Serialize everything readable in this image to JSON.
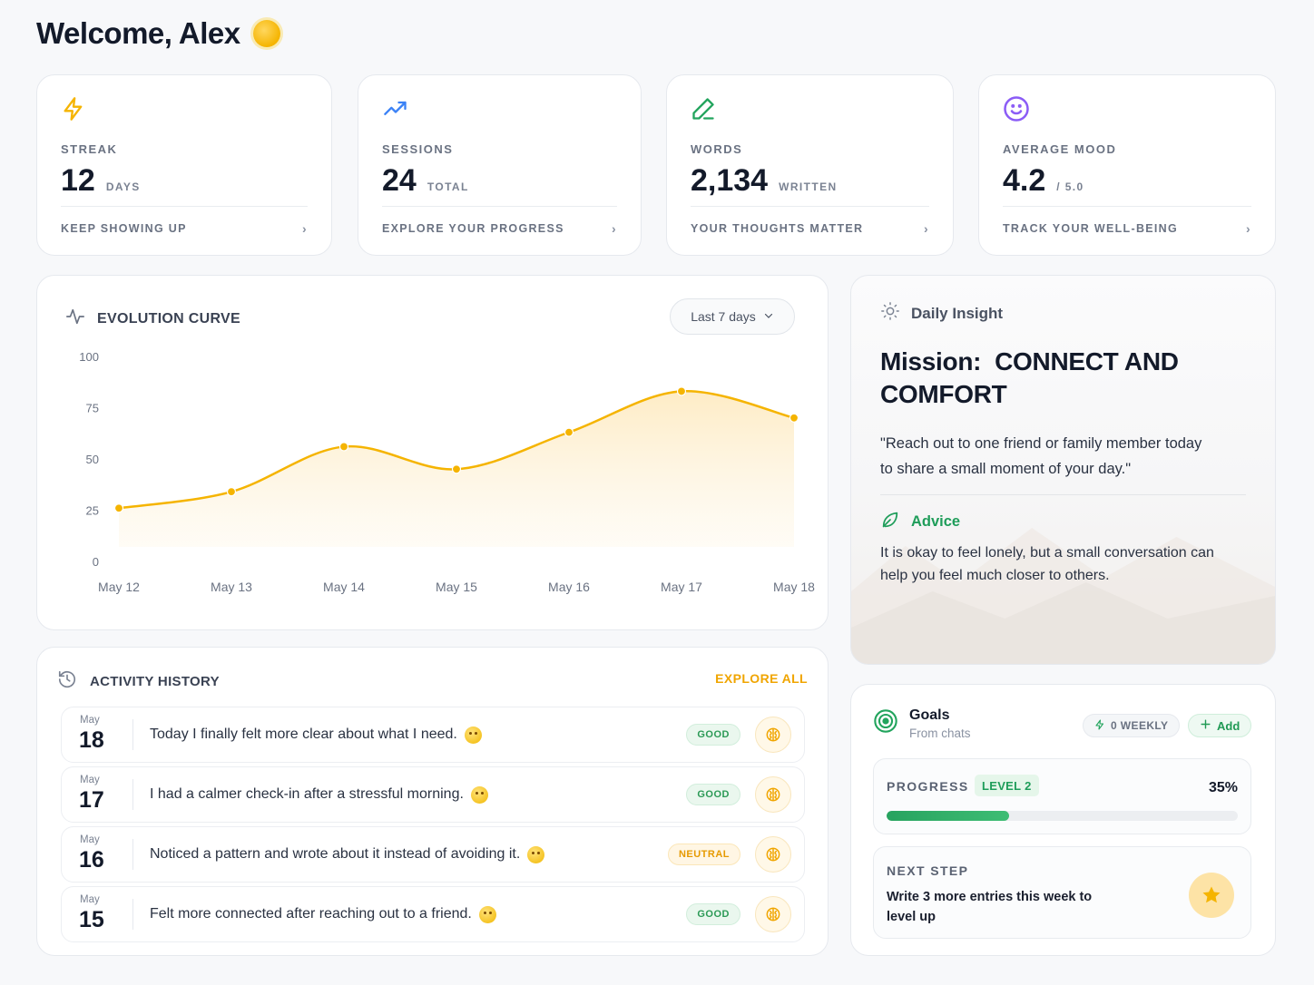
{
  "header": {
    "title": "Welcome, Alex"
  },
  "stats": [
    {
      "icon": "lightning-icon",
      "label": "STREAK",
      "value": "12",
      "unit": "DAYS",
      "footer": "KEEP SHOWING UP",
      "color": "#f5b400"
    },
    {
      "icon": "trending-up-icon",
      "label": "SESSIONS",
      "value": "24",
      "unit": "TOTAL",
      "footer": "EXPLORE YOUR PROGRESS",
      "color": "#3b82f6"
    },
    {
      "icon": "pencil-icon",
      "label": "WORDS",
      "value": "2,134",
      "unit": "WRITTEN",
      "footer": "YOUR THOUGHTS MATTER",
      "color": "#22a45d"
    },
    {
      "icon": "smile-icon",
      "label": "AVERAGE MOOD",
      "value": "4.2",
      "unit": "/ 5.0",
      "footer": "TRACK YOUR WELL-BEING",
      "color": "#8b5cf6"
    }
  ],
  "chart": {
    "title": "EVOLUTION CURVE",
    "range_label": "Last 7 days"
  },
  "chart_data": {
    "type": "area",
    "categories": [
      "May 12",
      "May 13",
      "May 14",
      "May 15",
      "May 16",
      "May 17",
      "May 18"
    ],
    "values": [
      26,
      34,
      56,
      45,
      63,
      83,
      70
    ],
    "yticks": [
      0,
      25,
      50,
      75,
      100
    ],
    "ylim": [
      0,
      100
    ],
    "color": "#f5b400"
  },
  "insight": {
    "header": "Daily Insight",
    "mission_prefix": "Mission:",
    "mission": "CONNECT AND COMFORT",
    "quote": "\"Reach out to one friend or family member today to share a small moment of your day.\"",
    "advice_label": "Advice",
    "advice": "It is okay to feel lonely, but a small conversation can help you feel much closer to others."
  },
  "activity": {
    "title": "ACTIVITY HISTORY",
    "explore_label": "EXPLORE ALL",
    "rows": [
      {
        "month": "May",
        "day": "18",
        "text": "Today I finally felt more clear about what I need.",
        "badge": "GOOD",
        "type": "good"
      },
      {
        "month": "May",
        "day": "17",
        "text": "I had a calmer check-in after a stressful morning.",
        "badge": "GOOD",
        "type": "good"
      },
      {
        "month": "May",
        "day": "16",
        "text": "Noticed a pattern and wrote about it instead of avoiding it.",
        "badge": "NEUTRAL",
        "type": "neutral"
      },
      {
        "month": "May",
        "day": "15",
        "text": "Felt more connected after reaching out to a friend.",
        "badge": "GOOD",
        "type": "good"
      }
    ]
  },
  "goals": {
    "title": "Goals",
    "subtitle": "From chats",
    "weekly_label": "0 WEEKLY",
    "add_label": "Add",
    "progress_label": "PROGRESS",
    "level_label": "LEVEL 2",
    "progress_pct": "35%",
    "progress_value": 0.35,
    "next_label": "NEXT STEP",
    "next_text": "Write 3 more entries this week to level up"
  }
}
